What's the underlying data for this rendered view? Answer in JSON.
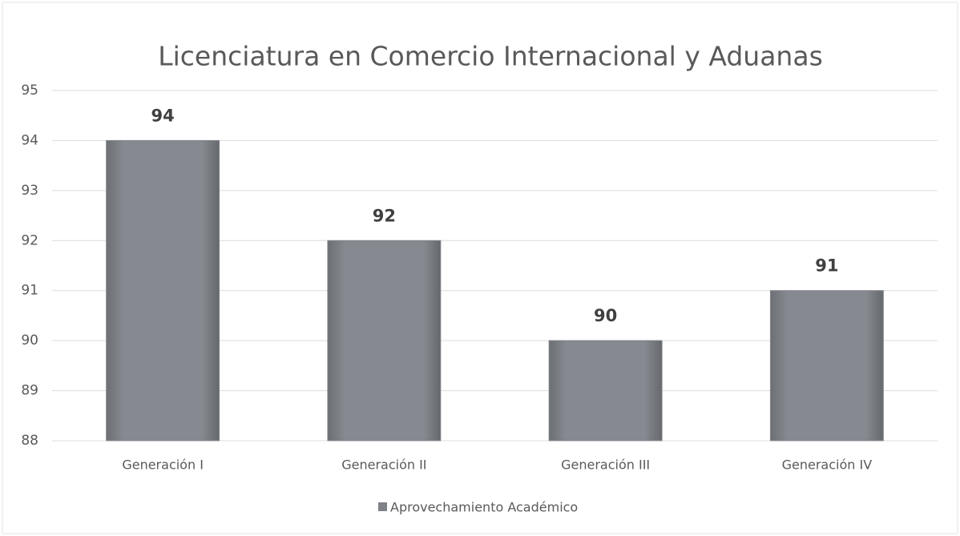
{
  "chart_data": {
    "type": "bar",
    "title": "Licenciatura en Comercio Internacional y Aduanas",
    "categories": [
      "Generación I",
      "Generación II",
      "Generación III",
      "Generación IV"
    ],
    "series": [
      {
        "name": "Aprovechamiento Académico",
        "color": "#7f8388",
        "values": [
          94,
          92,
          90,
          91
        ]
      }
    ],
    "ylim": [
      88,
      95
    ],
    "yticks": [
      88,
      89,
      90,
      91,
      92,
      93,
      94,
      95
    ],
    "grid": true,
    "legend": "bottom"
  }
}
